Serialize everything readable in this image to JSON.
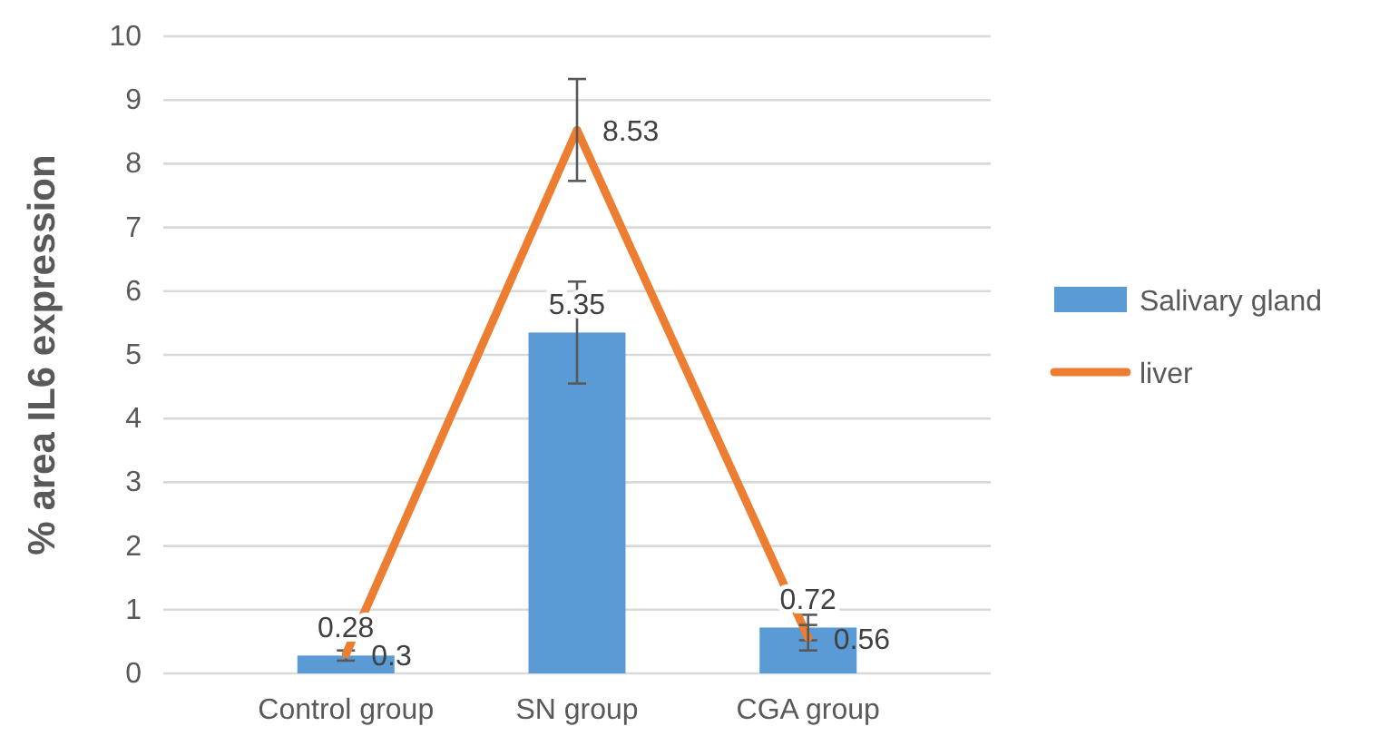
{
  "chart_data": {
    "type": "bar",
    "ylabel": "% area IL6 expression",
    "categories": [
      "Control group",
      "SN group",
      "CGA group"
    ],
    "series": [
      {
        "name": "Salivary gland",
        "color": "#5b9bd5",
        "values": [
          0.28,
          5.35,
          0.72
        ],
        "errors": [
          0.08,
          0.8,
          0.2
        ]
      },
      {
        "name": "liver",
        "type": "line",
        "color": "#ed7d31",
        "values": [
          0.3,
          8.53,
          0.56
        ],
        "errors": [
          null,
          0.8,
          0.2
        ]
      }
    ],
    "ylim": [
      0,
      10
    ],
    "yticks": [
      0,
      1,
      2,
      3,
      4,
      5,
      6,
      7,
      8,
      9,
      10
    ],
    "grid": "y",
    "legend": "right",
    "data_labels": true,
    "marker": "none",
    "line_style": "solid"
  }
}
